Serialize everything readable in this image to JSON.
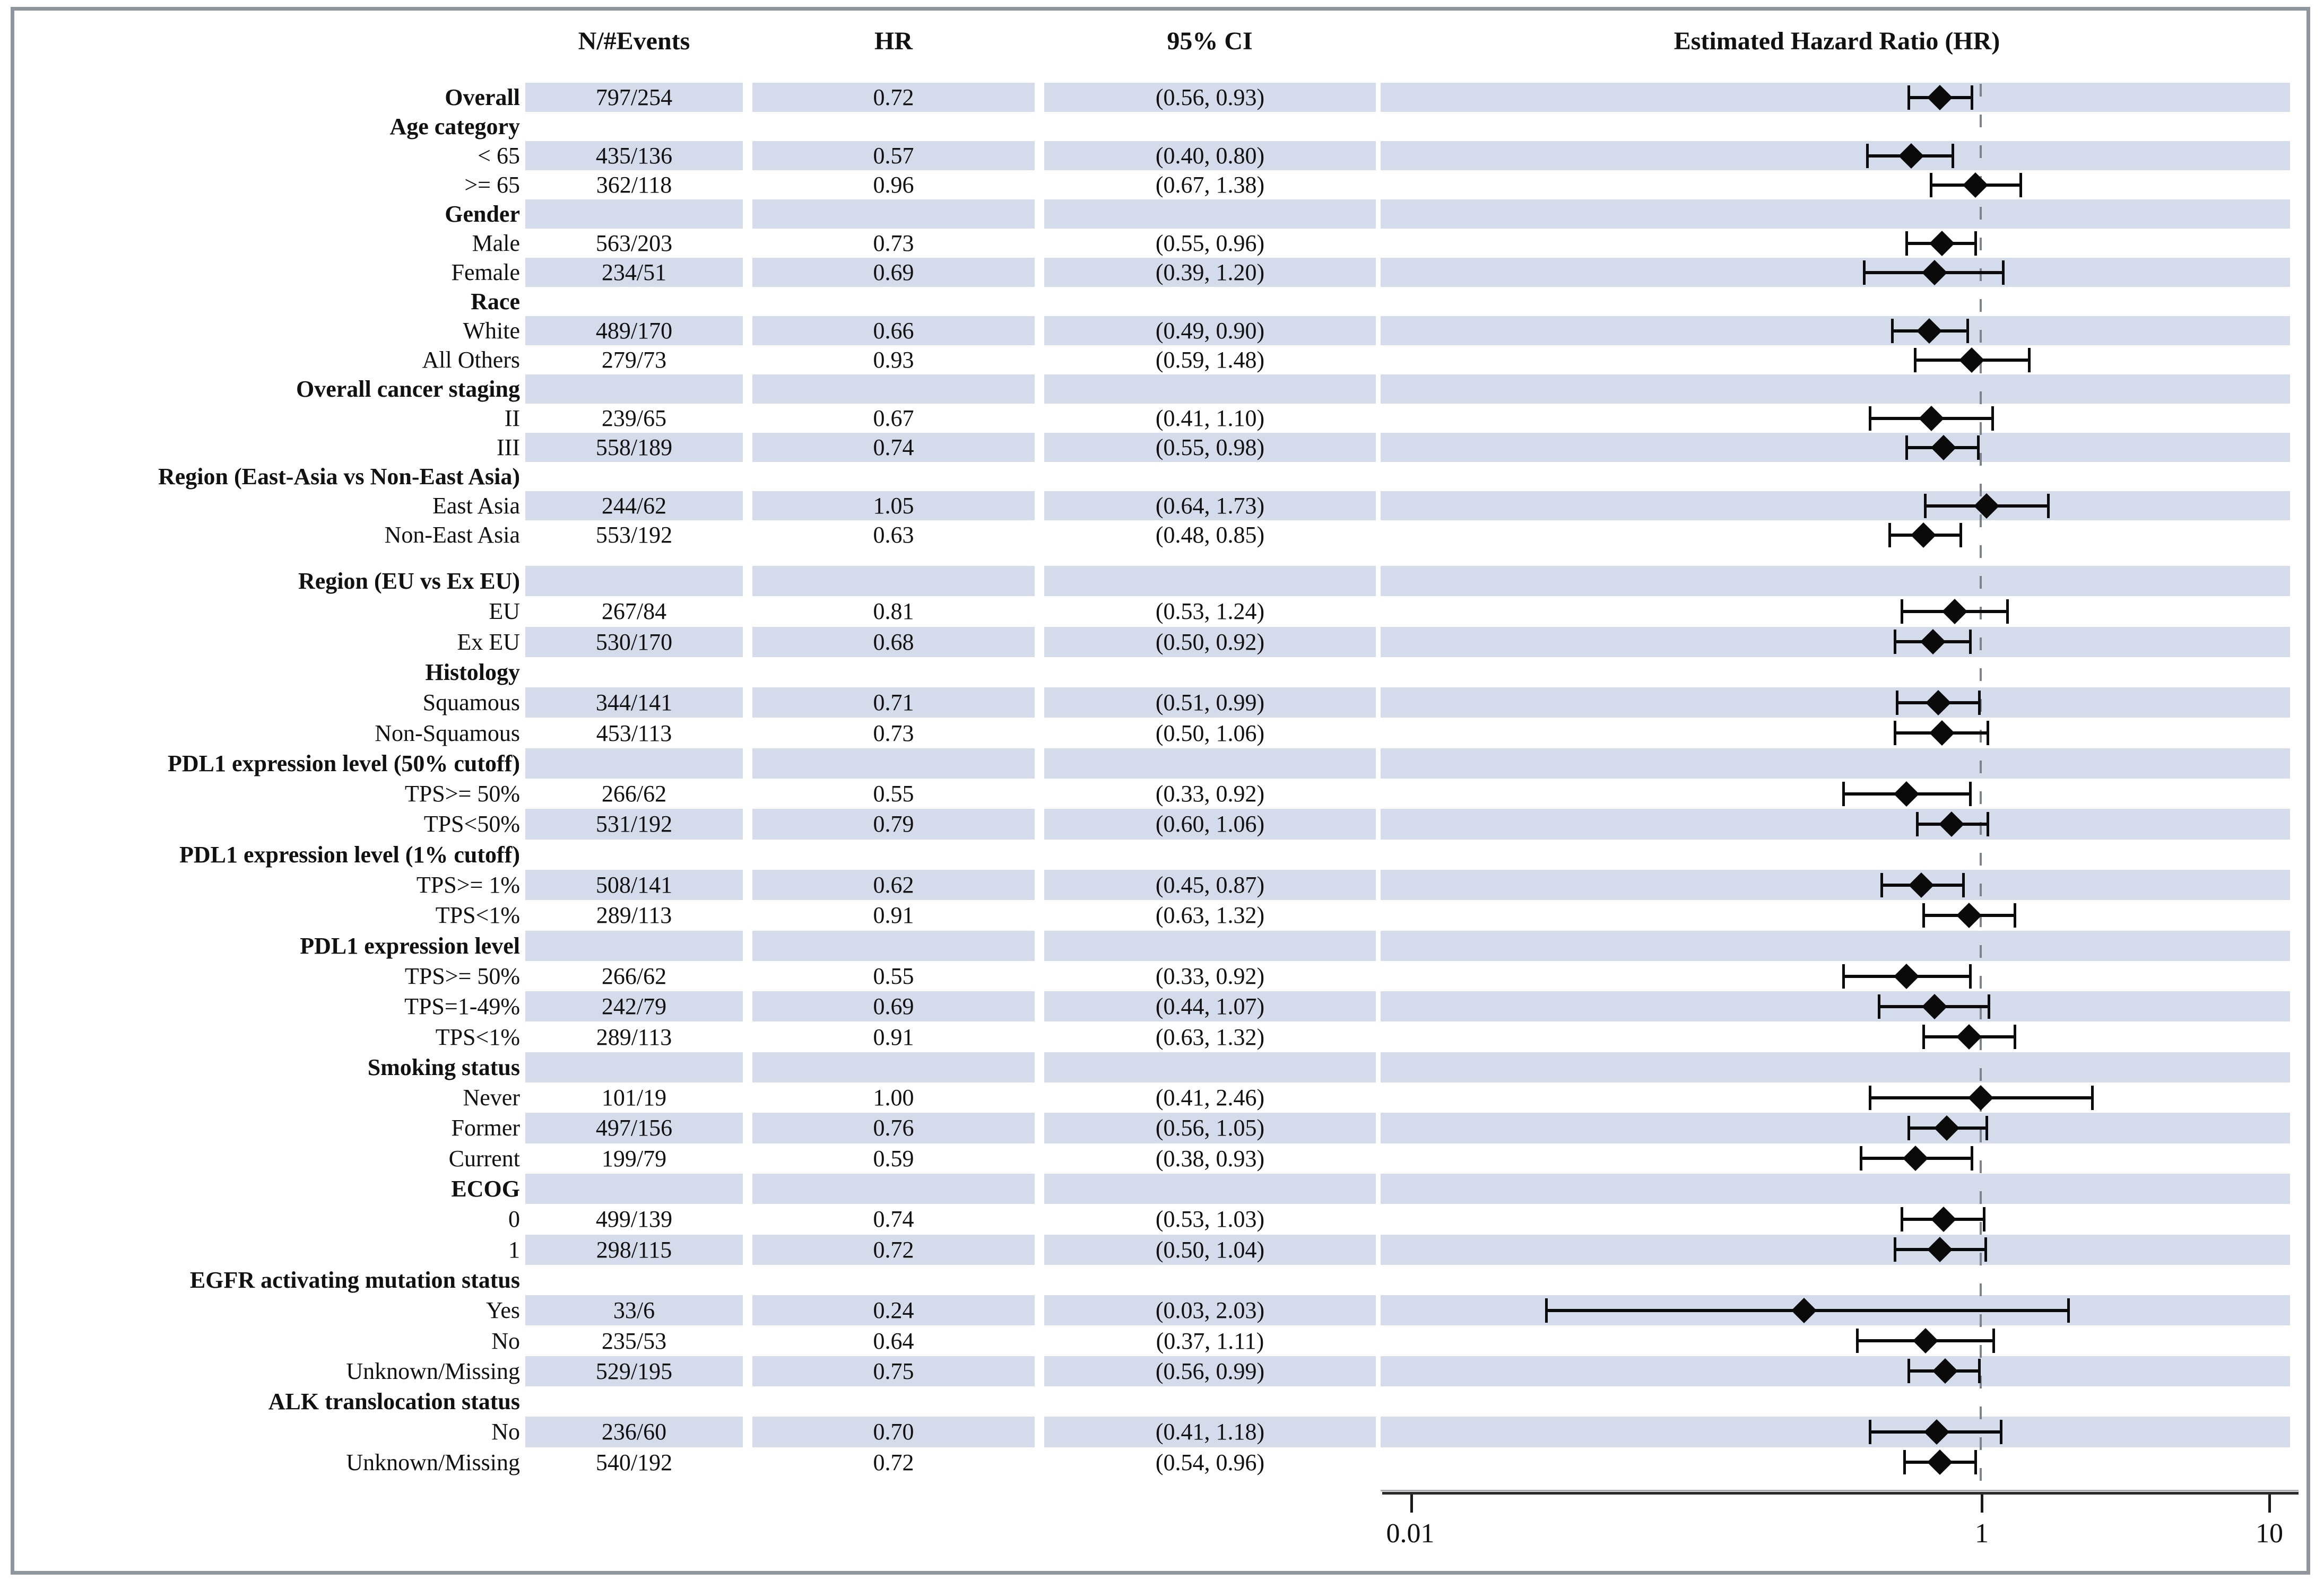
{
  "header": {
    "col_events": "N/#Events",
    "col_hr": "HR",
    "col_ci": "95% CI",
    "col_plot": "Estimated Hazard Ratio (HR)"
  },
  "axis": {
    "scale": "log",
    "min": 0.01,
    "max": 10,
    "reference_value": 1,
    "ticks": [
      0.01,
      1,
      10
    ],
    "tick_labels": [
      "0.01",
      "1",
      "10"
    ]
  },
  "colors": {
    "band": "#d4dceb",
    "marker": "#0a0a0a",
    "reference_line": "#7b828c",
    "frame_border": "#90969e"
  },
  "chart_data": {
    "type": "forest",
    "title": "Estimated Hazard Ratio (HR)",
    "rows": [
      {
        "label": "Overall",
        "section": false,
        "bold_label": true,
        "events": "797/254",
        "hr_text": "0.72",
        "ci_text": "(0.56, 0.93)",
        "hr": 0.72,
        "lo": 0.56,
        "hi": 0.93
      },
      {
        "label": "Age category",
        "section": true
      },
      {
        "label": "< 65",
        "events": "435/136",
        "hr_text": "0.57",
        "ci_text": "(0.40, 0.80)",
        "hr": 0.57,
        "lo": 0.4,
        "hi": 0.8
      },
      {
        "label": ">= 65",
        "events": "362/118",
        "hr_text": "0.96",
        "ci_text": "(0.67, 1.38)",
        "hr": 0.96,
        "lo": 0.67,
        "hi": 1.38
      },
      {
        "label": "Gender",
        "section": true
      },
      {
        "label": "Male",
        "events": "563/203",
        "hr_text": "0.73",
        "ci_text": "(0.55, 0.96)",
        "hr": 0.73,
        "lo": 0.55,
        "hi": 0.96
      },
      {
        "label": "Female",
        "events": "234/51",
        "hr_text": "0.69",
        "ci_text": "(0.39, 1.20)",
        "hr": 0.69,
        "lo": 0.39,
        "hi": 1.2
      },
      {
        "label": "Race",
        "section": true
      },
      {
        "label": "White",
        "events": "489/170",
        "hr_text": "0.66",
        "ci_text": "(0.49, 0.90)",
        "hr": 0.66,
        "lo": 0.49,
        "hi": 0.9
      },
      {
        "label": "All Others",
        "events": "279/73",
        "hr_text": "0.93",
        "ci_text": "(0.59, 1.48)",
        "hr": 0.93,
        "lo": 0.59,
        "hi": 1.48
      },
      {
        "label": "Overall cancer staging",
        "section": true
      },
      {
        "label": "II",
        "events": "239/65",
        "hr_text": "0.67",
        "ci_text": "(0.41, 1.10)",
        "hr": 0.67,
        "lo": 0.41,
        "hi": 1.1
      },
      {
        "label": "III",
        "events": "558/189",
        "hr_text": "0.74",
        "ci_text": "(0.55, 0.98)",
        "hr": 0.74,
        "lo": 0.55,
        "hi": 0.98
      },
      {
        "label": "Region (East-Asia vs Non-East Asia)",
        "section": true
      },
      {
        "label": "East Asia",
        "events": "244/62",
        "hr_text": "1.05",
        "ci_text": "(0.64, 1.73)",
        "hr": 1.05,
        "lo": 0.64,
        "hi": 1.73
      },
      {
        "label": "Non-East Asia",
        "events": "553/192",
        "hr_text": "0.63",
        "ci_text": "(0.48, 0.85)",
        "hr": 0.63,
        "lo": 0.48,
        "hi": 0.85
      },
      {
        "label": "Region (EU vs Ex EU)",
        "section": true,
        "gap_before": true
      },
      {
        "label": "EU",
        "events": "267/84",
        "hr_text": "0.81",
        "ci_text": "(0.53, 1.24)",
        "hr": 0.81,
        "lo": 0.53,
        "hi": 1.24
      },
      {
        "label": "Ex EU",
        "events": "530/170",
        "hr_text": "0.68",
        "ci_text": "(0.50, 0.92)",
        "hr": 0.68,
        "lo": 0.5,
        "hi": 0.92
      },
      {
        "label": "Histology",
        "section": true
      },
      {
        "label": "Squamous",
        "events": "344/141",
        "hr_text": "0.71",
        "ci_text": "(0.51, 0.99)",
        "hr": 0.71,
        "lo": 0.51,
        "hi": 0.99
      },
      {
        "label": "Non-Squamous",
        "events": "453/113",
        "hr_text": "0.73",
        "ci_text": "(0.50, 1.06)",
        "hr": 0.73,
        "lo": 0.5,
        "hi": 1.06
      },
      {
        "label": "PDL1 expression level (50% cutoff)",
        "section": true
      },
      {
        "label": "TPS>= 50%",
        "events": "266/62",
        "hr_text": "0.55",
        "ci_text": "(0.33, 0.92)",
        "hr": 0.55,
        "lo": 0.33,
        "hi": 0.92
      },
      {
        "label": "TPS<50%",
        "events": "531/192",
        "hr_text": "0.79",
        "ci_text": "(0.60, 1.06)",
        "hr": 0.79,
        "lo": 0.6,
        "hi": 1.06
      },
      {
        "label": "PDL1 expression level (1% cutoff)",
        "section": true
      },
      {
        "label": "TPS>= 1%",
        "events": "508/141",
        "hr_text": "0.62",
        "ci_text": "(0.45, 0.87)",
        "hr": 0.62,
        "lo": 0.45,
        "hi": 0.87
      },
      {
        "label": "TPS<1%",
        "events": "289/113",
        "hr_text": "0.91",
        "ci_text": "(0.63, 1.32)",
        "hr": 0.91,
        "lo": 0.63,
        "hi": 1.32
      },
      {
        "label": "PDL1 expression level",
        "section": true
      },
      {
        "label": "TPS>= 50%",
        "events": "266/62",
        "hr_text": "0.55",
        "ci_text": "(0.33, 0.92)",
        "hr": 0.55,
        "lo": 0.33,
        "hi": 0.92
      },
      {
        "label": "TPS=1-49%",
        "events": "242/79",
        "hr_text": "0.69",
        "ci_text": "(0.44, 1.07)",
        "hr": 0.69,
        "lo": 0.44,
        "hi": 1.07
      },
      {
        "label": "TPS<1%",
        "events": "289/113",
        "hr_text": "0.91",
        "ci_text": "(0.63, 1.32)",
        "hr": 0.91,
        "lo": 0.63,
        "hi": 1.32
      },
      {
        "label": "Smoking status",
        "section": true
      },
      {
        "label": "Never",
        "events": "101/19",
        "hr_text": "1.00",
        "ci_text": "(0.41, 2.46)",
        "hr": 1.0,
        "lo": 0.41,
        "hi": 2.46
      },
      {
        "label": "Former",
        "events": "497/156",
        "hr_text": "0.76",
        "ci_text": "(0.56, 1.05)",
        "hr": 0.76,
        "lo": 0.56,
        "hi": 1.05
      },
      {
        "label": "Current",
        "events": "199/79",
        "hr_text": "0.59",
        "ci_text": "(0.38, 0.93)",
        "hr": 0.59,
        "lo": 0.38,
        "hi": 0.93
      },
      {
        "label": "ECOG",
        "section": true
      },
      {
        "label": "0",
        "events": "499/139",
        "hr_text": "0.74",
        "ci_text": "(0.53, 1.03)",
        "hr": 0.74,
        "lo": 0.53,
        "hi": 1.03
      },
      {
        "label": "1",
        "events": "298/115",
        "hr_text": "0.72",
        "ci_text": "(0.50, 1.04)",
        "hr": 0.72,
        "lo": 0.5,
        "hi": 1.04
      },
      {
        "label": "EGFR activating mutation status",
        "section": true
      },
      {
        "label": "Yes",
        "events": "33/6",
        "hr_text": "0.24",
        "ci_text": "(0.03, 2.03)",
        "hr": 0.24,
        "lo": 0.03,
        "hi": 2.03
      },
      {
        "label": "No",
        "events": "235/53",
        "hr_text": "0.64",
        "ci_text": "(0.37, 1.11)",
        "hr": 0.64,
        "lo": 0.37,
        "hi": 1.11
      },
      {
        "label": "Unknown/Missing",
        "events": "529/195",
        "hr_text": "0.75",
        "ci_text": "(0.56, 0.99)",
        "hr": 0.75,
        "lo": 0.56,
        "hi": 0.99
      },
      {
        "label": "ALK translocation status",
        "section": true
      },
      {
        "label": "No",
        "events": "236/60",
        "hr_text": "0.70",
        "ci_text": "(0.41, 1.18)",
        "hr": 0.7,
        "lo": 0.41,
        "hi": 1.18
      },
      {
        "label": "Unknown/Missing",
        "events": "540/192",
        "hr_text": "0.72",
        "ci_text": "(0.54, 0.96)",
        "hr": 0.72,
        "lo": 0.54,
        "hi": 0.96
      }
    ]
  }
}
